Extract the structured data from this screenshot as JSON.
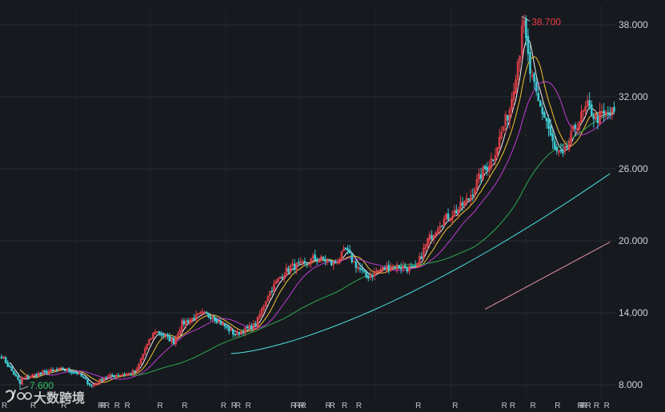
{
  "colors": {
    "background": "#161a1f",
    "grid": "#2a2f36",
    "up": "#e0404a",
    "down": "#3fc7d0",
    "ma5": "#f0f0f0",
    "ma10": "#f5c431",
    "ma20": "#c23bd4",
    "ma60": "#2fa84f",
    "ma120": "#4fe0e0",
    "ma250": "#e88fa0",
    "high_label": "#f03a45",
    "low_label": "#2fc060"
  },
  "watermark": {
    "icon": "logo-icon",
    "text": "大数跨境"
  },
  "chart_data": {
    "type": "candlestick",
    "title": "",
    "xlabel": "",
    "ylabel": "",
    "ylim": [
      7.0,
      39.5
    ],
    "y_ticks": [
      "8.000",
      "14.000",
      "20.000",
      "26.000",
      "32.000",
      "38.000"
    ],
    "y_tick_values": [
      8,
      14,
      20,
      26,
      32,
      38
    ],
    "bar_count": 300,
    "grid": "on",
    "high_marker": {
      "label": "38.700",
      "value": 38.7,
      "bar_index": 254
    },
    "low_marker": {
      "label": "7.600",
      "value": 7.6,
      "bar_index": 9
    },
    "anchors": [
      [
        0,
        10.4
      ],
      [
        8,
        8.4
      ],
      [
        14,
        8.7
      ],
      [
        22,
        9.1
      ],
      [
        30,
        9.3
      ],
      [
        37,
        9.0
      ],
      [
        44,
        7.9
      ],
      [
        50,
        8.6
      ],
      [
        56,
        8.8
      ],
      [
        62,
        8.9
      ],
      [
        66,
        9.2
      ],
      [
        70,
        11.0
      ],
      [
        75,
        12.5
      ],
      [
        80,
        12.0
      ],
      [
        84,
        11.6
      ],
      [
        88,
        13.1
      ],
      [
        93,
        13.5
      ],
      [
        98,
        13.9
      ],
      [
        103,
        13.7
      ],
      [
        108,
        13.0
      ],
      [
        114,
        12.2
      ],
      [
        119,
        12.6
      ],
      [
        124,
        13.0
      ],
      [
        130,
        15.5
      ],
      [
        136,
        17.0
      ],
      [
        141,
        17.8
      ],
      [
        148,
        18.0
      ],
      [
        152,
        18.5
      ],
      [
        158,
        18.4
      ],
      [
        162,
        18.0
      ],
      [
        168,
        19.2
      ],
      [
        172,
        18.2
      ],
      [
        178,
        17.0
      ],
      [
        184,
        17.5
      ],
      [
        190,
        17.9
      ],
      [
        196,
        17.8
      ],
      [
        202,
        17.6
      ],
      [
        208,
        20.0
      ],
      [
        214,
        21.5
      ],
      [
        222,
        22.5
      ],
      [
        228,
        23.5
      ],
      [
        234,
        25.5
      ],
      [
        240,
        27.0
      ],
      [
        244,
        29.0
      ],
      [
        248,
        31.0
      ],
      [
        252,
        35.0
      ],
      [
        255,
        37.8
      ],
      [
        258,
        34.0
      ],
      [
        262,
        31.5
      ],
      [
        266,
        30.0
      ],
      [
        270,
        27.5
      ],
      [
        274,
        27.0
      ],
      [
        280,
        29.5
      ],
      [
        286,
        31.2
      ],
      [
        290,
        30.2
      ],
      [
        295,
        30.5
      ],
      [
        300,
        30.8
      ]
    ],
    "ma_lines": [
      {
        "name": "MA5",
        "period": 5,
        "color_key": "ma5"
      },
      {
        "name": "MA10",
        "period": 10,
        "color_key": "ma10"
      },
      {
        "name": "MA20",
        "period": 20,
        "color_key": "ma20"
      },
      {
        "name": "MA60",
        "period": 60,
        "color_key": "ma60"
      }
    ],
    "long_ma_lines": [
      {
        "name": "MA120",
        "color_key": "ma120",
        "start_bar": 112,
        "end_bar": 297,
        "start_value": 10.6,
        "end_value": 25.6,
        "shape": "convex"
      },
      {
        "name": "MA250",
        "color_key": "ma250",
        "start_bar": 236,
        "end_bar": 297,
        "start_value": 14.3,
        "end_value": 19.9,
        "shape": "linear"
      }
    ],
    "dividend_markers": {
      "label": "R",
      "positions": [
        0,
        14,
        29,
        47,
        48,
        50,
        55,
        60,
        76,
        88,
        107,
        112,
        114,
        119,
        141,
        143,
        145,
        146,
        158,
        160,
        166,
        173,
        202,
        220,
        244,
        248,
        258,
        270,
        281,
        282,
        283,
        285,
        289,
        294
      ]
    }
  }
}
